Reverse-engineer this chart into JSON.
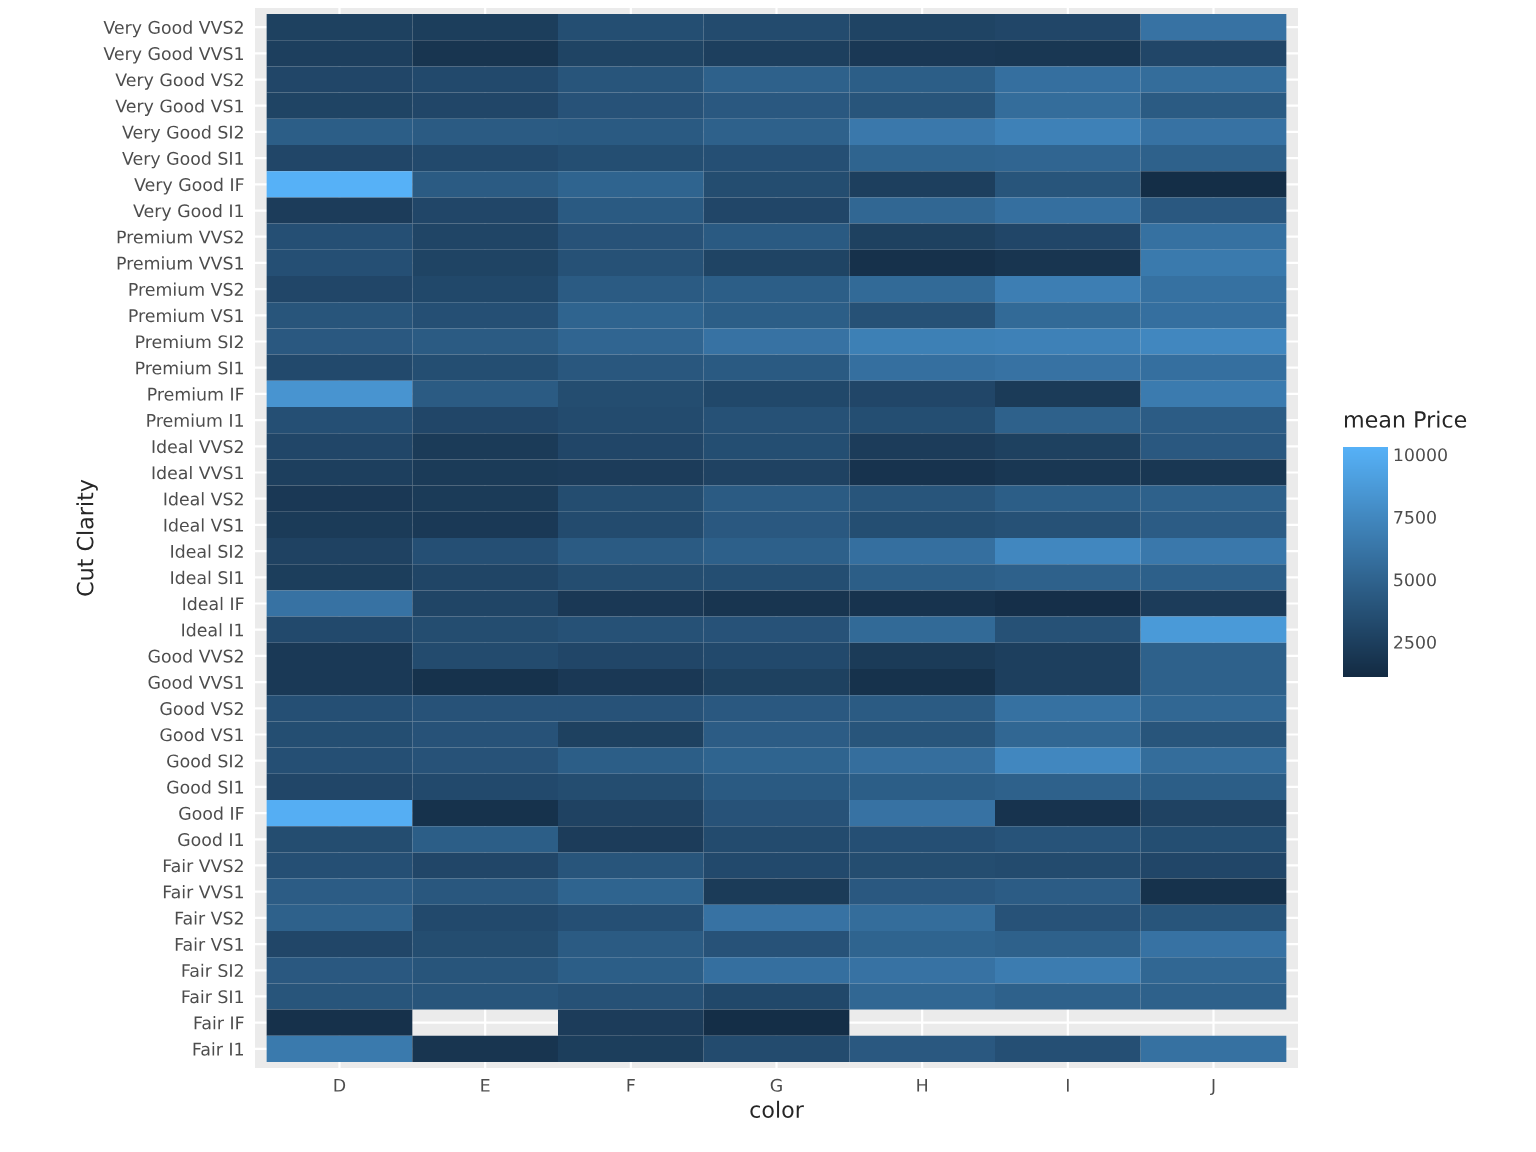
{
  "chart_data": {
    "type": "heatmap",
    "xlabel": "color",
    "ylabel": "Cut Clarity",
    "clabel": "mean Price",
    "categories": [
      "D",
      "E",
      "F",
      "G",
      "H",
      "I",
      "J"
    ],
    "y_categories": [
      "Very Good VVS2",
      "Very Good VVS1",
      "Very Good VS2",
      "Very Good VS1",
      "Very Good SI2",
      "Very Good SI1",
      "Very Good IF",
      "Very Good I1",
      "Premium VVS2",
      "Premium VVS1",
      "Premium VS2",
      "Premium VS1",
      "Premium SI2",
      "Premium SI1",
      "Premium IF",
      "Premium I1",
      "Ideal VVS2",
      "Ideal VVS1",
      "Ideal VS2",
      "Ideal VS1",
      "Ideal SI2",
      "Ideal SI1",
      "Ideal IF",
      "Ideal I1",
      "Good VVS2",
      "Good VVS1",
      "Good VS2",
      "Good VS1",
      "Good SI2",
      "Good SI1",
      "Good IF",
      "Good I1",
      "Fair VVS2",
      "Fair VVS1",
      "Fair VS2",
      "Fair VS1",
      "Fair SI2",
      "Fair SI1",
      "Fair IF",
      "Fair I1"
    ],
    "cells": [
      [
        2600,
        2400,
        3500,
        3300,
        2800,
        3000,
        6000
      ],
      [
        2500,
        1800,
        2800,
        2500,
        2000,
        1900,
        3000
      ],
      [
        3000,
        3200,
        4000,
        4800,
        4600,
        5800,
        5600
      ],
      [
        2800,
        3000,
        3800,
        4200,
        4000,
        5600,
        4400
      ],
      [
        4600,
        4400,
        4300,
        4800,
        6400,
        7000,
        6000
      ],
      [
        3000,
        3200,
        3500,
        3600,
        5000,
        5100,
        4800
      ],
      [
        10300,
        4400,
        5000,
        3400,
        2500,
        4000,
        1300
      ],
      [
        2300,
        3000,
        4300,
        3000,
        5200,
        5800,
        4200
      ],
      [
        3600,
        2900,
        3800,
        4300,
        2600,
        3000,
        5900
      ],
      [
        3600,
        2800,
        3700,
        2800,
        1500,
        1800,
        6500
      ],
      [
        3000,
        3100,
        4400,
        4600,
        5400,
        6800,
        5900
      ],
      [
        4000,
        3600,
        5000,
        4600,
        3700,
        5400,
        5800
      ],
      [
        4200,
        4400,
        5100,
        6000,
        6900,
        7000,
        7400
      ],
      [
        3200,
        3500,
        4100,
        4300,
        5800,
        6000,
        5800
      ],
      [
        8300,
        4400,
        3400,
        3100,
        3000,
        2200,
        6600
      ],
      [
        3600,
        3000,
        3300,
        3700,
        3500,
        4800,
        4500
      ],
      [
        3000,
        2200,
        3000,
        3500,
        2300,
        2600,
        4200
      ],
      [
        2500,
        2200,
        2300,
        2700,
        1700,
        1900,
        1900
      ],
      [
        2000,
        2200,
        3400,
        4400,
        4000,
        4600,
        4800
      ],
      [
        2200,
        2100,
        3300,
        4200,
        3500,
        3700,
        4500
      ],
      [
        2700,
        3600,
        4400,
        4700,
        5800,
        7400,
        6400
      ],
      [
        2400,
        2900,
        3400,
        3500,
        4600,
        4800,
        4700
      ],
      [
        6000,
        2900,
        2000,
        1800,
        1700,
        1400,
        2300
      ],
      [
        3200,
        3400,
        3700,
        3800,
        5400,
        3700,
        8700
      ],
      [
        2100,
        3300,
        3000,
        3200,
        2200,
        2500,
        4800
      ],
      [
        2100,
        1600,
        2000,
        2600,
        1600,
        2500,
        4800
      ],
      [
        3600,
        3800,
        3800,
        4200,
        4400,
        5900,
        5200
      ],
      [
        3500,
        3800,
        2600,
        4500,
        4000,
        5200,
        4000
      ],
      [
        3600,
        3800,
        4600,
        5000,
        5700,
        7400,
        5600
      ],
      [
        3000,
        3200,
        3400,
        4300,
        4600,
        4800,
        4600
      ],
      [
        10100,
        1600,
        2700,
        3800,
        6000,
        1700,
        2700
      ],
      [
        3400,
        4600,
        2300,
        3300,
        3600,
        3900,
        3500
      ],
      [
        3600,
        3000,
        4000,
        3200,
        3400,
        3300,
        3000
      ],
      [
        4500,
        4100,
        5000,
        2200,
        4200,
        4500,
        1600
      ],
      [
        4800,
        3200,
        3600,
        6000,
        5600,
        3800,
        4000
      ],
      [
        3000,
        3400,
        4400,
        3800,
        5000,
        4800,
        6000
      ],
      [
        4200,
        4000,
        4600,
        5800,
        6000,
        6700,
        5200
      ],
      [
        4000,
        4000,
        3700,
        3100,
        5200,
        4800,
        4800
      ],
      [
        1500,
        null,
        2300,
        1300,
        null,
        null,
        null
      ],
      [
        6500,
        1800,
        2400,
        3300,
        4200,
        3600,
        5900
      ]
    ],
    "clim": [
      1100,
      10300
    ],
    "cticks": [
      2500,
      5000,
      7500,
      10000
    ],
    "grid": true
  }
}
